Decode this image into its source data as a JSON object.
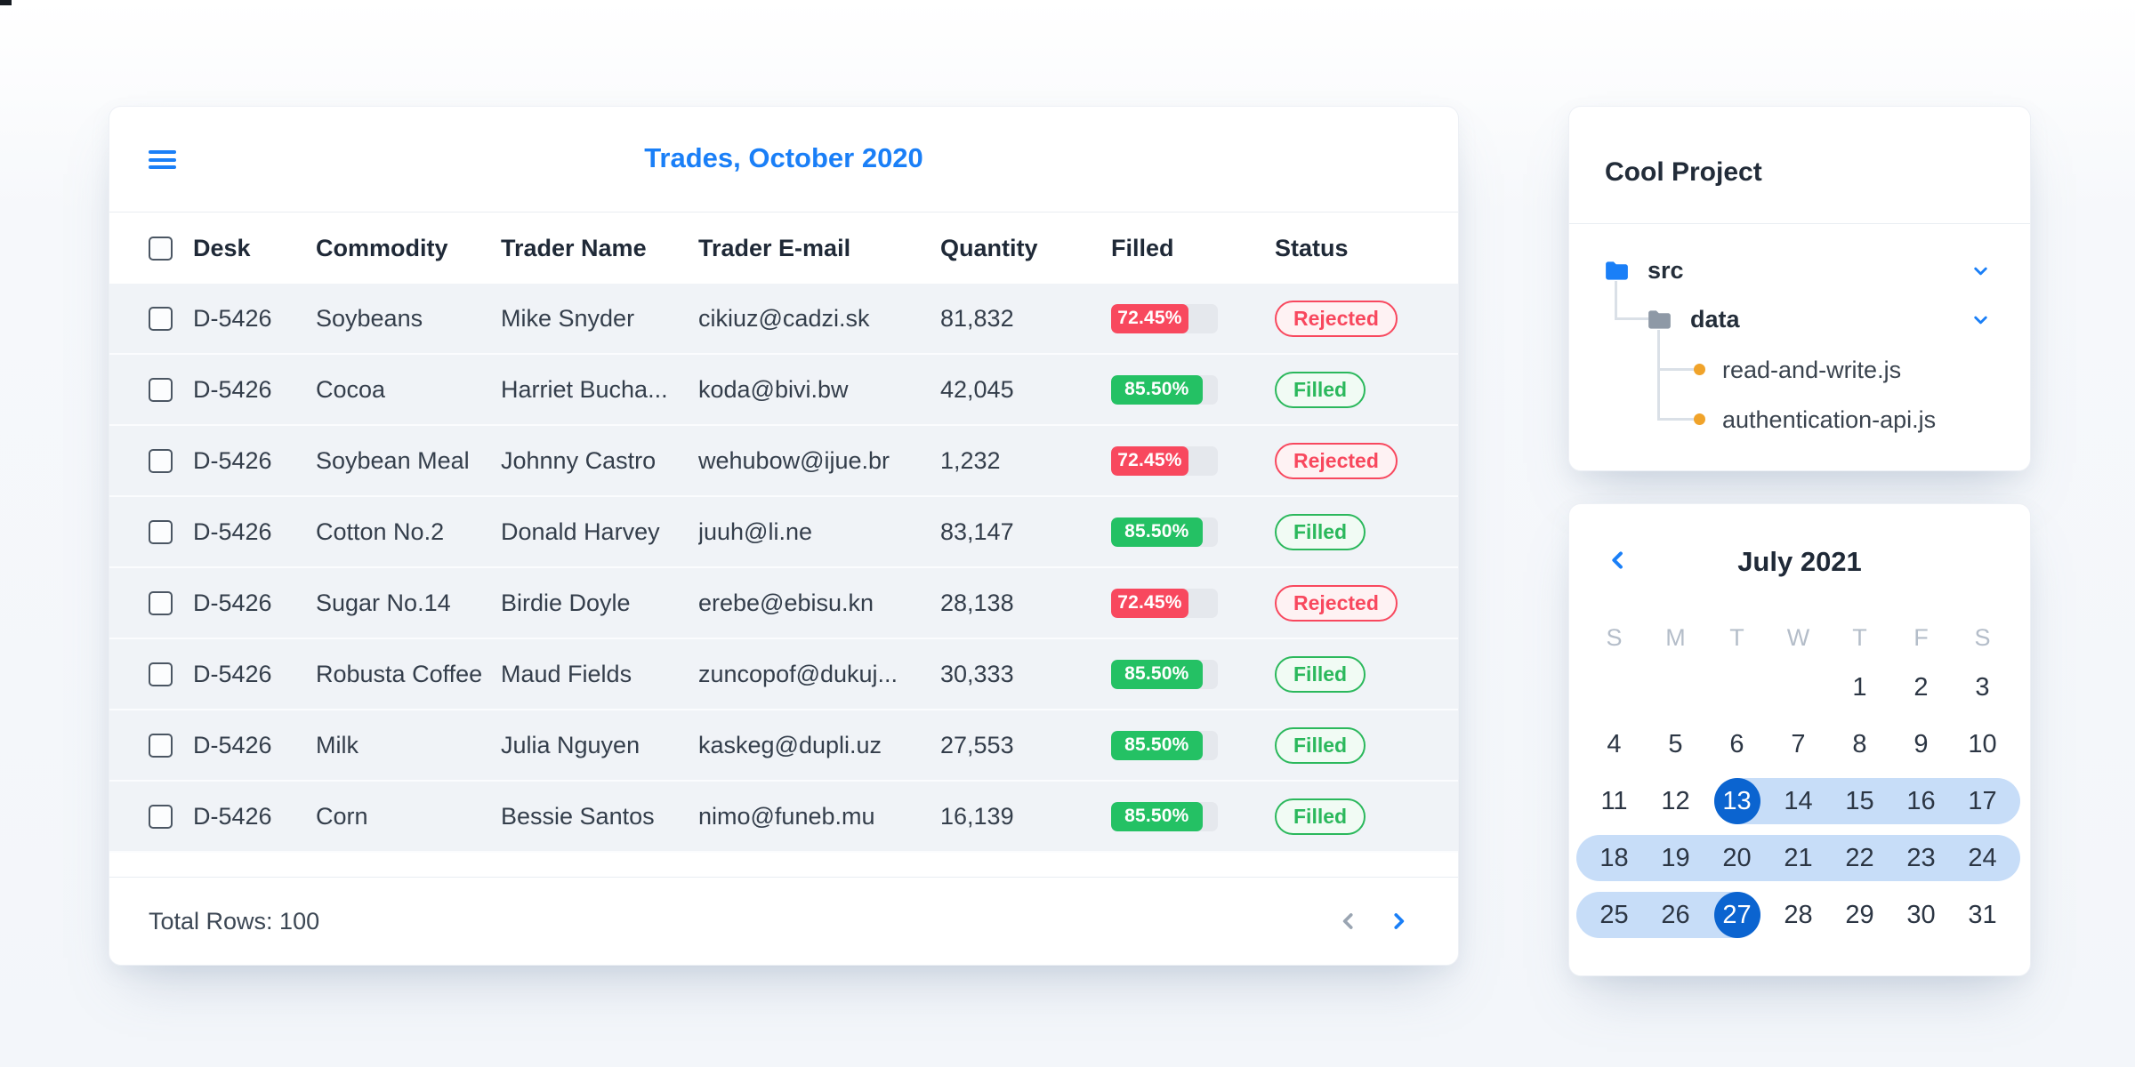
{
  "table_card": {
    "title": "Trades, October 2020",
    "menu_icon": "hamburger-icon",
    "columns": [
      "Desk",
      "Commodity",
      "Trader Name",
      "Trader E-mail",
      "Quantity",
      "Filled",
      "Status"
    ],
    "rows": [
      {
        "desk": "D-5426",
        "commodity": "Soybeans",
        "trader_name": "Mike Snyder",
        "trader_email": "cikiuz@cadzi.sk",
        "quantity": "81,832",
        "filled_label": "72.45%",
        "filled_pct": 72.45,
        "status": "Rejected"
      },
      {
        "desk": "D-5426",
        "commodity": "Cocoa",
        "trader_name": "Harriet Bucha...",
        "trader_email": "koda@bivi.bw",
        "quantity": "42,045",
        "filled_label": "85.50%",
        "filled_pct": 85.5,
        "status": "Filled"
      },
      {
        "desk": "D-5426",
        "commodity": "Soybean Meal",
        "trader_name": "Johnny Castro",
        "trader_email": "wehubow@ijue.br",
        "quantity": "1,232",
        "filled_label": "72.45%",
        "filled_pct": 72.45,
        "status": "Rejected"
      },
      {
        "desk": "D-5426",
        "commodity": "Cotton No.2",
        "trader_name": "Donald Harvey",
        "trader_email": "juuh@li.ne",
        "quantity": "83,147",
        "filled_label": "85.50%",
        "filled_pct": 85.5,
        "status": "Filled"
      },
      {
        "desk": "D-5426",
        "commodity": "Sugar No.14",
        "trader_name": "Birdie Doyle",
        "trader_email": "erebe@ebisu.kn",
        "quantity": "28,138",
        "filled_label": "72.45%",
        "filled_pct": 72.45,
        "status": "Rejected"
      },
      {
        "desk": "D-5426",
        "commodity": "Robusta Coffee",
        "trader_name": "Maud Fields",
        "trader_email": "zuncopof@dukuj...",
        "quantity": "30,333",
        "filled_label": "85.50%",
        "filled_pct": 85.5,
        "status": "Filled"
      },
      {
        "desk": "D-5426",
        "commodity": "Milk",
        "trader_name": "Julia Nguyen",
        "trader_email": "kaskeg@dupli.uz",
        "quantity": "27,553",
        "filled_label": "85.50%",
        "filled_pct": 85.5,
        "status": "Filled"
      },
      {
        "desk": "D-5426",
        "commodity": "Corn",
        "trader_name": "Bessie Santos",
        "trader_email": "nimo@funeb.mu",
        "quantity": "16,139",
        "filled_label": "85.50%",
        "filled_pct": 85.5,
        "status": "Filled"
      }
    ],
    "footer": {
      "total_rows_label": "Total Rows: 100",
      "prev_icon": "chevron-left-icon",
      "next_icon": "chevron-right-icon"
    }
  },
  "project_card": {
    "title": "Cool Project",
    "tree": [
      {
        "label": "src",
        "type": "folder",
        "color": "blue",
        "expanded": true,
        "depth": 0
      },
      {
        "label": "data",
        "type": "folder",
        "color": "grey",
        "expanded": true,
        "depth": 1
      },
      {
        "label": "read-and-write.js",
        "type": "file",
        "depth": 2
      },
      {
        "label": "authentication-api.js",
        "type": "file",
        "depth": 2
      }
    ]
  },
  "calendar_card": {
    "title": "July 2021",
    "nav_prev_icon": "chevron-left-icon",
    "weekdays": [
      "S",
      "M",
      "T",
      "W",
      "T",
      "F",
      "S"
    ],
    "weeks": [
      [
        null,
        null,
        null,
        null,
        1,
        2,
        3
      ],
      [
        4,
        5,
        6,
        7,
        8,
        9,
        10
      ],
      [
        11,
        12,
        13,
        14,
        15,
        16,
        17
      ],
      [
        18,
        19,
        20,
        21,
        22,
        23,
        24
      ],
      [
        25,
        26,
        27,
        28,
        29,
        30,
        31
      ]
    ],
    "range_start_day": 13,
    "range_end_day": 27
  },
  "colors": {
    "accent_blue": "#1a7ff7",
    "selected_day_blue": "#0b64d0",
    "range_band_blue": "#c7ddf8",
    "progress_red": "#f8485e",
    "progress_green": "#24c164",
    "progress_track": "#e5e8ed",
    "badge_red_text": "#f8485e",
    "badge_red_bg": "#fef2f3",
    "badge_green_text": "#2bb85c",
    "badge_green_bg": "#f1fbf4",
    "file_dot_orange": "#f0a32a",
    "row_bg": "#f0f3f7"
  }
}
